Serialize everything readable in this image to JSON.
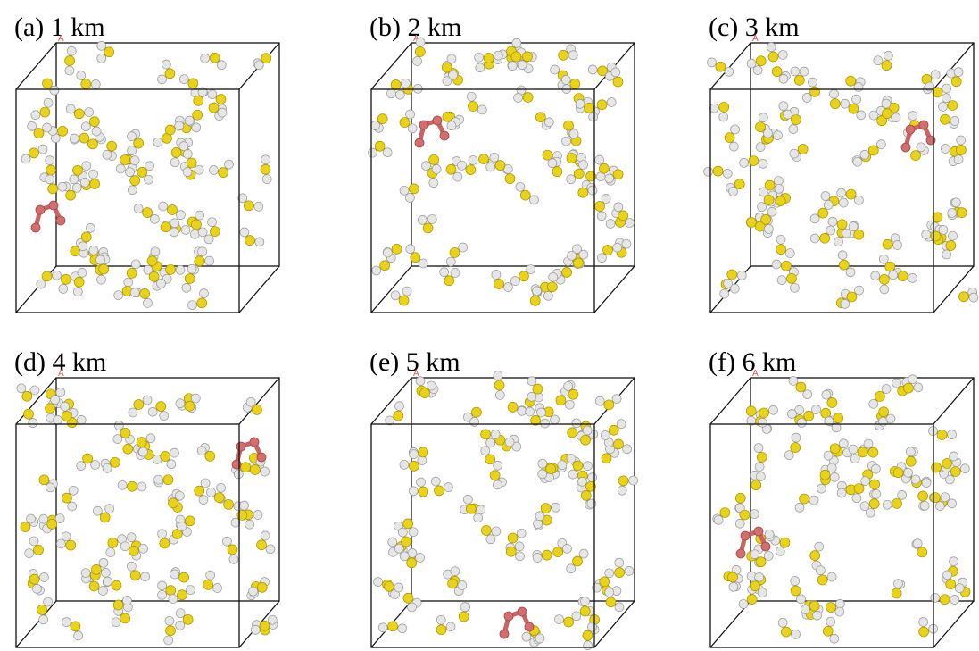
{
  "panels": [
    {
      "label": "(a) 1 km",
      "axis_label": "A"
    },
    {
      "label": "(b) 2 km",
      "axis_label": "A"
    },
    {
      "label": "(c) 3 km",
      "axis_label": "A"
    },
    {
      "label": "(d) 4 km",
      "axis_label": "A"
    },
    {
      "label": "(e) 5 km",
      "axis_label": "A"
    },
    {
      "label": "(f) 6 km",
      "axis_label": "A"
    }
  ]
}
